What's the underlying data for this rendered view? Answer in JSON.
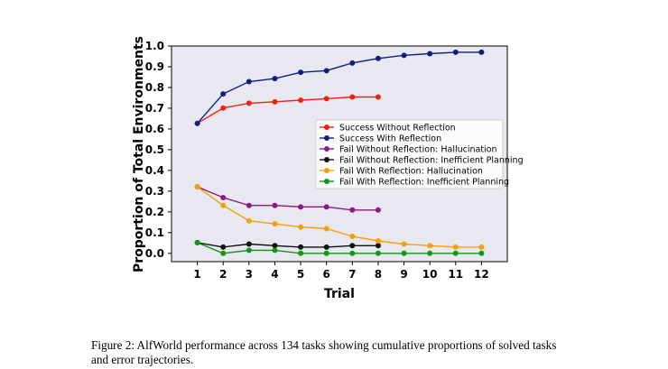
{
  "chart_data": {
    "type": "line",
    "xlabel": "Trial",
    "ylabel": "Proportion of Total Environments",
    "xlim": [
      0,
      13
    ],
    "ylim": [
      -0.04,
      1.0
    ],
    "x_ticks": [
      1,
      2,
      3,
      4,
      5,
      6,
      7,
      8,
      9,
      10,
      11,
      12
    ],
    "y_ticks": [
      "0.0",
      "0.1",
      "0.2",
      "0.3",
      "0.4",
      "0.5",
      "0.6",
      "0.7",
      "0.8",
      "0.9",
      "1.0"
    ],
    "grid": false,
    "legend_position": "center-right",
    "plot_background": "#e8e8f0",
    "series": [
      {
        "name": "Success Without Reflection",
        "color": "#ee2211",
        "x": [
          1,
          2,
          3,
          4,
          5,
          6,
          7,
          8
        ],
        "y": [
          0.627,
          0.701,
          0.724,
          0.731,
          0.739,
          0.746,
          0.754,
          0.754
        ]
      },
      {
        "name": "Success With Reflection",
        "color": "#0f1f80",
        "x": [
          1,
          2,
          3,
          4,
          5,
          6,
          7,
          8,
          9,
          10,
          11,
          12
        ],
        "y": [
          0.627,
          0.769,
          0.828,
          0.843,
          0.873,
          0.881,
          0.918,
          0.94,
          0.955,
          0.963,
          0.97,
          0.97
        ]
      },
      {
        "name": "Fail Without Reflection: Hallucination",
        "color": "#8a1a80",
        "x": [
          1,
          2,
          3,
          4,
          5,
          6,
          7,
          8
        ],
        "y": [
          0.321,
          0.269,
          0.231,
          0.231,
          0.224,
          0.224,
          0.209,
          0.209
        ]
      },
      {
        "name": "Fail Without Reflection: Inefficient Planning",
        "color": "#111111",
        "x": [
          1,
          2,
          3,
          4,
          5,
          6,
          7,
          8
        ],
        "y": [
          0.052,
          0.03,
          0.045,
          0.037,
          0.03,
          0.03,
          0.037,
          0.037
        ]
      },
      {
        "name": "Fail With Reflection: Hallucination",
        "color": "#f5a00a",
        "x": [
          1,
          2,
          3,
          4,
          5,
          6,
          7,
          8,
          9,
          10,
          11,
          12
        ],
        "y": [
          0.321,
          0.231,
          0.157,
          0.142,
          0.127,
          0.119,
          0.082,
          0.06,
          0.045,
          0.037,
          0.03,
          0.03
        ]
      },
      {
        "name": "Fail With Reflection: Inefficient Planning",
        "color": "#12961a",
        "x": [
          1,
          2,
          3,
          4,
          5,
          6,
          7,
          8,
          9,
          10,
          11,
          12
        ],
        "y": [
          0.052,
          0.0,
          0.015,
          0.015,
          0.0,
          0.0,
          0.0,
          0.0,
          0.0,
          0.0,
          0.0,
          0.0
        ]
      }
    ]
  },
  "caption": {
    "line1": "Figure 2: AlfWorld performance across 134 tasks showing cumulative proportions of solved tasks",
    "line2": "and error trajectories."
  }
}
